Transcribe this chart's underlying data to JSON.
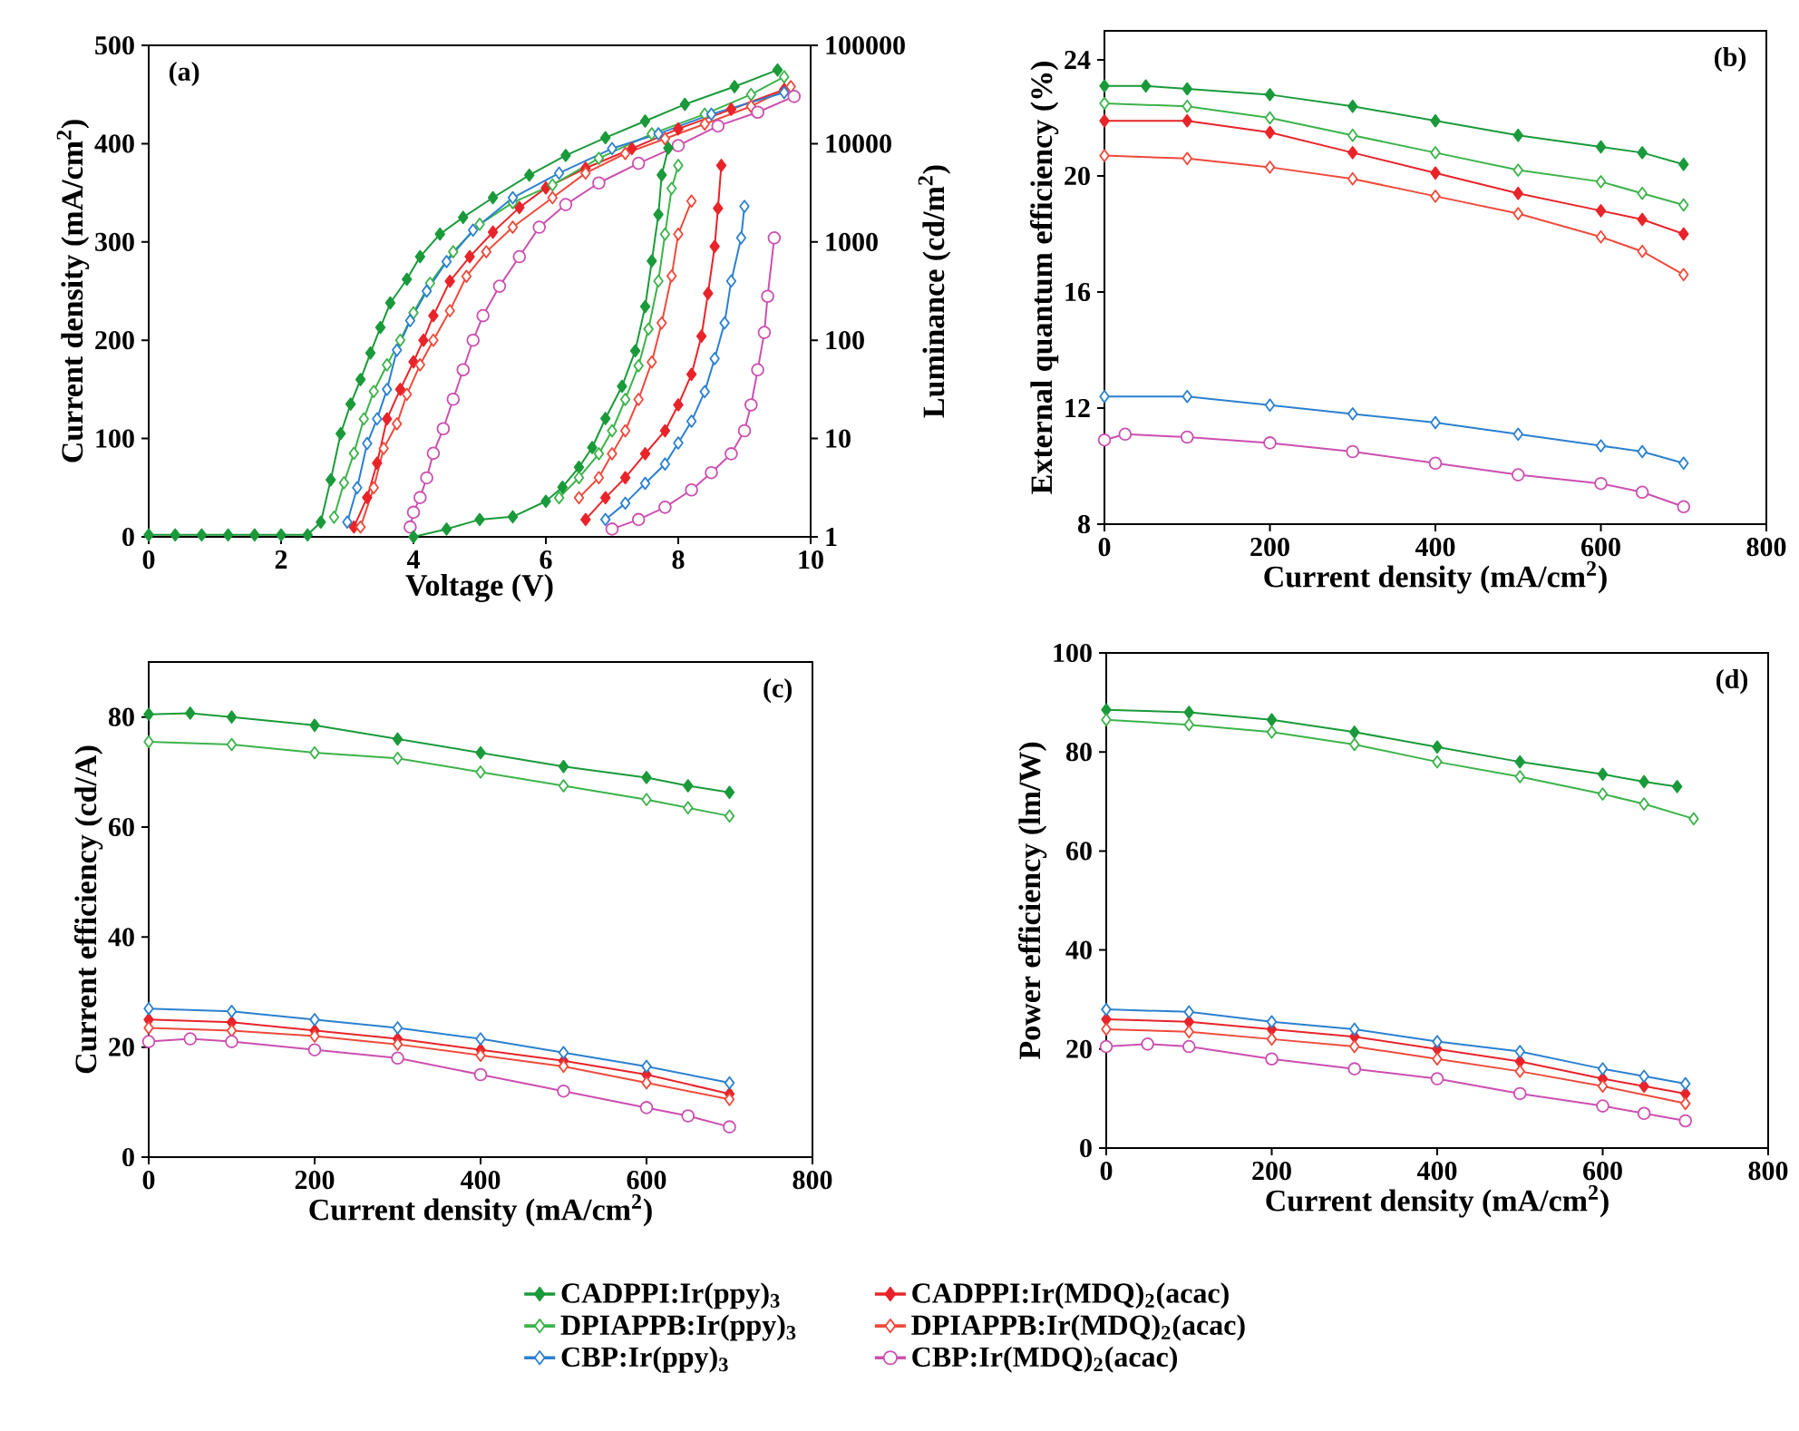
{
  "chart_data": [
    {
      "type": "line",
      "title": "(a)",
      "xlabel": "Voltage (V)",
      "ylabel": "Current density (mA/cm$^{2}$)",
      "y2label": "Luminance (cd/m$^{2}$)",
      "log": "y2",
      "legend": "bottom",
      "xlim": [
        0,
        10
      ],
      "xticks": [
        0,
        2,
        4,
        6,
        8,
        10
      ],
      "ylim": [
        0,
        500
      ],
      "yticks": [
        0,
        100,
        200,
        300,
        400,
        500
      ],
      "y2lim": [
        1,
        100000
      ],
      "y2ticks": [
        1,
        10,
        100,
        1000,
        10000,
        100000
      ],
      "series": [
        {
          "name": "CADPPI:Ir(ppy)$_{3}$",
          "color": "#1a9a3a",
          "marker": "diamond",
          "x": [
            0,
            0.4,
            0.8,
            1.2,
            1.6,
            2.0,
            2.4,
            2.6,
            2.75,
            2.9,
            3.05,
            3.2,
            3.35,
            3.5,
            3.65,
            3.9,
            4.1,
            4.4,
            4.75,
            5.2,
            5.75,
            6.3,
            6.9,
            7.5,
            8.1,
            8.85,
            9.5
          ],
          "values": [
            2,
            2,
            2,
            2,
            2,
            2,
            2,
            15,
            58,
            105,
            135,
            160,
            187,
            213,
            238,
            262,
            285,
            308,
            325,
            345,
            368,
            388,
            406,
            423,
            440,
            458,
            475
          ]
        },
        {
          "name": "CADPPI:Ir(MDQ)$_{2}$(acac)",
          "color": "#e8242a",
          "marker": "diamond",
          "x": [
            3.1,
            3.3,
            3.45,
            3.6,
            3.8,
            4.0,
            4.15,
            4.3,
            4.55,
            4.85,
            5.2,
            5.6,
            6.0,
            6.6,
            7.3,
            8.0,
            8.8,
            9.6
          ],
          "values": [
            10,
            40,
            75,
            120,
            150,
            178,
            200,
            225,
            260,
            285,
            310,
            335,
            355,
            375,
            395,
            415,
            435,
            455
          ]
        },
        {
          "name": "DPIAPPB:Ir(ppy)$_{3}$",
          "color": "#3cb34a",
          "marker": "diamond",
          "x": [
            2.8,
            2.95,
            3.1,
            3.25,
            3.4,
            3.6,
            3.8,
            4.0,
            4.25,
            4.6,
            5.0,
            5.5,
            6.1,
            6.8,
            7.6,
            8.4,
            9.1,
            9.6
          ],
          "values": [
            20,
            55,
            85,
            120,
            148,
            175,
            200,
            228,
            258,
            290,
            318,
            340,
            358,
            385,
            410,
            430,
            450,
            468
          ]
        },
        {
          "name": "DPIAPPB:Ir(MDQ)$_{2}$(acac)",
          "color": "#ef4a3c",
          "marker": "diamond",
          "x": [
            3.2,
            3.4,
            3.55,
            3.75,
            3.9,
            4.1,
            4.3,
            4.55,
            4.8,
            5.1,
            5.5,
            6.1,
            6.6,
            7.2,
            7.8,
            8.4,
            9.1,
            9.7
          ],
          "values": [
            10,
            50,
            90,
            115,
            145,
            175,
            200,
            230,
            265,
            290,
            315,
            345,
            370,
            390,
            405,
            420,
            438,
            458
          ]
        },
        {
          "name": "CBP:Ir(ppy)$_{3}$",
          "color": "#2b80d0",
          "marker": "diamond",
          "x": [
            3.0,
            3.15,
            3.3,
            3.45,
            3.6,
            3.75,
            3.95,
            4.2,
            4.5,
            4.9,
            5.5,
            6.2,
            7.0,
            7.7,
            8.5,
            9.6
          ],
          "values": [
            15,
            50,
            95,
            120,
            150,
            190,
            220,
            250,
            280,
            312,
            345,
            370,
            395,
            410,
            430,
            452
          ]
        },
        {
          "name": "CBP:Ir(MDQ)$_{2}$(acac)",
          "color": "#cc4fb0",
          "marker": "circle",
          "x": [
            3.95,
            4.0,
            4.1,
            4.2,
            4.3,
            4.45,
            4.6,
            4.75,
            4.9,
            5.05,
            5.3,
            5.6,
            5.9,
            6.3,
            6.8,
            7.4,
            8.0,
            8.6,
            9.2,
            9.75
          ],
          "values": [
            10,
            25,
            40,
            60,
            85,
            110,
            140,
            170,
            200,
            225,
            255,
            285,
            315,
            338,
            360,
            380,
            398,
            418,
            432,
            448
          ]
        },
        {
          "axis": "y2",
          "color": "#1a9a3a",
          "marker": "diamond",
          "x": [
            4.0,
            4.5,
            5.0,
            5.5,
            6.0,
            6.25,
            6.5,
            6.7,
            6.9,
            7.15,
            7.35,
            7.5,
            7.6,
            7.7,
            7.75,
            7.85
          ],
          "values": [
            1,
            1.2,
            1.5,
            1.6,
            2.3,
            3.2,
            5.1,
            8.1,
            16,
            34,
            78,
            220,
            640,
            1900,
            4800,
            9000
          ]
        },
        {
          "axis": "y2",
          "color": "#e8242a",
          "marker": "diamond",
          "x": [
            6.6,
            6.9,
            7.2,
            7.5,
            7.8,
            8.0,
            8.2,
            8.35,
            8.45,
            8.55,
            8.6,
            8.65
          ],
          "values": [
            1.5,
            2.5,
            4,
            7,
            12,
            22,
            45,
            110,
            300,
            900,
            2200,
            6000
          ]
        },
        {
          "axis": "y2",
          "color": "#3cb34a",
          "marker": "diamond",
          "x": [
            6.2,
            6.5,
            6.8,
            7.0,
            7.2,
            7.4,
            7.55,
            7.7,
            7.8,
            7.9,
            8.0
          ],
          "values": [
            2.5,
            4,
            7,
            12,
            25,
            55,
            130,
            400,
            1200,
            3500,
            6000
          ]
        },
        {
          "axis": "y2",
          "color": "#ef4a3c",
          "marker": "diamond",
          "x": [
            6.5,
            6.8,
            7.0,
            7.2,
            7.4,
            7.6,
            7.75,
            7.9,
            8.0,
            8.2
          ],
          "values": [
            2.5,
            4,
            7,
            12,
            25,
            60,
            150,
            450,
            1200,
            2600
          ]
        },
        {
          "axis": "y2",
          "color": "#2b80d0",
          "marker": "diamond",
          "x": [
            6.9,
            7.2,
            7.5,
            7.8,
            8.0,
            8.2,
            8.4,
            8.55,
            8.7,
            8.8,
            8.95,
            9.0
          ],
          "values": [
            1.5,
            2.2,
            3.5,
            5.5,
            9,
            15,
            30,
            65,
            150,
            400,
            1100,
            2300
          ]
        },
        {
          "axis": "y2",
          "color": "#cc4fb0",
          "marker": "circle",
          "x": [
            7.0,
            7.4,
            7.8,
            8.2,
            8.5,
            8.8,
            9.0,
            9.1,
            9.2,
            9.3,
            9.35,
            9.45
          ],
          "values": [
            1.2,
            1.5,
            2,
            3,
            4.5,
            7,
            12,
            22,
            50,
            120,
            280,
            1100
          ]
        }
      ]
    },
    {
      "type": "line",
      "title": "(b)",
      "xlabel": "Current density (mA/cm$^{2}$)",
      "ylabel": "External quantum efficiency (%)",
      "xlim": [
        0,
        800
      ],
      "xticks": [
        0,
        200,
        400,
        600,
        800
      ],
      "ylim": [
        8,
        25
      ],
      "yticks": [
        8,
        12,
        16,
        20,
        24
      ],
      "series": [
        {
          "color": "#1a9a3a",
          "marker": "diamond",
          "x": [
            0,
            50,
            100,
            200,
            300,
            400,
            500,
            600,
            650,
            700
          ],
          "values": [
            23.1,
            23.1,
            23.0,
            22.8,
            22.4,
            21.9,
            21.4,
            21.0,
            20.8,
            20.4
          ]
        },
        {
          "color": "#e8242a",
          "marker": "diamond",
          "x": [
            0,
            100,
            200,
            300,
            400,
            500,
            600,
            650,
            700
          ],
          "values": [
            21.9,
            21.9,
            21.5,
            20.8,
            20.1,
            19.4,
            18.8,
            18.5,
            18.0
          ]
        },
        {
          "color": "#3cb34a",
          "marker": "diamond",
          "x": [
            0,
            100,
            200,
            300,
            400,
            500,
            600,
            650,
            700
          ],
          "values": [
            22.5,
            22.4,
            22.0,
            21.4,
            20.8,
            20.2,
            19.8,
            19.4,
            19.0
          ]
        },
        {
          "color": "#ef4a3c",
          "marker": "diamond",
          "x": [
            0,
            100,
            200,
            300,
            400,
            500,
            600,
            650,
            700
          ],
          "values": [
            20.7,
            20.6,
            20.3,
            19.9,
            19.3,
            18.7,
            17.9,
            17.4,
            16.6
          ]
        },
        {
          "color": "#2b80d0",
          "marker": "diamond",
          "x": [
            0,
            100,
            200,
            300,
            400,
            500,
            600,
            650,
            700
          ],
          "values": [
            12.4,
            12.4,
            12.1,
            11.8,
            11.5,
            11.1,
            10.7,
            10.5,
            10.1
          ]
        },
        {
          "color": "#cc4fb0",
          "marker": "circle",
          "x": [
            0,
            25,
            100,
            200,
            300,
            400,
            500,
            600,
            650,
            700
          ],
          "values": [
            10.9,
            11.1,
            11.0,
            10.8,
            10.5,
            10.1,
            9.7,
            9.4,
            9.1,
            8.6
          ]
        }
      ]
    },
    {
      "type": "line",
      "title": "(c)",
      "xlabel": "Current density (mA/cm$^{2}$)",
      "ylabel": "Current efficiency (cd/A)",
      "xlim": [
        0,
        800
      ],
      "xticks": [
        0,
        200,
        400,
        600,
        800
      ],
      "ylim": [
        0,
        90
      ],
      "yticks": [
        0,
        20,
        40,
        60,
        80
      ],
      "series": [
        {
          "color": "#1a9a3a",
          "marker": "diamond",
          "x": [
            0,
            50,
            100,
            200,
            300,
            400,
            500,
            600,
            650,
            700
          ],
          "values": [
            80.5,
            80.7,
            80,
            78.5,
            76,
            73.5,
            71,
            69,
            67.5,
            66.3
          ]
        },
        {
          "color": "#e8242a",
          "marker": "diamond",
          "x": [
            0,
            100,
            200,
            300,
            400,
            500,
            600,
            700
          ],
          "values": [
            25,
            24.5,
            23,
            21.5,
            19.5,
            17.5,
            15,
            11.5
          ]
        },
        {
          "color": "#3cb34a",
          "marker": "diamond",
          "x": [
            0,
            100,
            200,
            300,
            400,
            500,
            600,
            650,
            700
          ],
          "values": [
            75.5,
            75,
            73.5,
            72.5,
            70,
            67.5,
            65,
            63.5,
            62
          ]
        },
        {
          "color": "#ef4a3c",
          "marker": "diamond",
          "x": [
            0,
            100,
            200,
            300,
            400,
            500,
            600,
            700
          ],
          "values": [
            23.5,
            23,
            22,
            20.5,
            18.5,
            16.5,
            13.5,
            10.5
          ]
        },
        {
          "color": "#2b80d0",
          "marker": "diamond",
          "x": [
            0,
            100,
            200,
            300,
            400,
            500,
            600,
            700
          ],
          "values": [
            27,
            26.5,
            25,
            23.5,
            21.5,
            19,
            16.5,
            13.5
          ]
        },
        {
          "color": "#cc4fb0",
          "marker": "circle",
          "x": [
            0,
            50,
            100,
            200,
            300,
            400,
            500,
            600,
            650,
            700
          ],
          "values": [
            21,
            21.5,
            21,
            19.5,
            18,
            15,
            12,
            9,
            7.5,
            5.5
          ]
        }
      ]
    },
    {
      "type": "line",
      "title": "(d)",
      "xlabel": "Current density (mA/cm$^{2}$)",
      "ylabel": "Power efficiency (lm/W)",
      "xlim": [
        0,
        800
      ],
      "xticks": [
        0,
        200,
        400,
        600,
        800
      ],
      "ylim": [
        0,
        100
      ],
      "yticks": [
        0,
        20,
        40,
        60,
        80,
        100
      ],
      "series": [
        {
          "color": "#1a9a3a",
          "marker": "diamond",
          "x": [
            0,
            100,
            200,
            300,
            400,
            500,
            600,
            650,
            690
          ],
          "values": [
            88.5,
            88,
            86.5,
            84,
            81,
            78,
            75.5,
            74,
            73
          ]
        },
        {
          "color": "#e8242a",
          "marker": "diamond",
          "x": [
            0,
            100,
            200,
            300,
            400,
            500,
            600,
            650,
            700
          ],
          "values": [
            26,
            25.5,
            24,
            22.5,
            20,
            17.5,
            14,
            12.5,
            11
          ]
        },
        {
          "color": "#3cb34a",
          "marker": "diamond",
          "x": [
            0,
            100,
            200,
            300,
            400,
            500,
            600,
            650,
            710
          ],
          "values": [
            86.5,
            85.5,
            84,
            81.5,
            78,
            75,
            71.5,
            69.5,
            66.5
          ]
        },
        {
          "color": "#ef4a3c",
          "marker": "diamond",
          "x": [
            0,
            100,
            200,
            300,
            400,
            500,
            600,
            700
          ],
          "values": [
            24,
            23.5,
            22,
            20.5,
            18,
            15.5,
            12.5,
            9
          ]
        },
        {
          "color": "#2b80d0",
          "marker": "diamond",
          "x": [
            0,
            100,
            200,
            300,
            400,
            500,
            600,
            650,
            700
          ],
          "values": [
            28,
            27.5,
            25.5,
            24,
            21.5,
            19.5,
            16,
            14.5,
            13
          ]
        },
        {
          "color": "#cc4fb0",
          "marker": "circle",
          "x": [
            0,
            50,
            100,
            200,
            300,
            400,
            500,
            600,
            650,
            700
          ],
          "values": [
            20.5,
            21,
            20.5,
            18,
            16,
            14,
            11,
            8.5,
            7,
            5.5
          ]
        }
      ]
    }
  ]
}
